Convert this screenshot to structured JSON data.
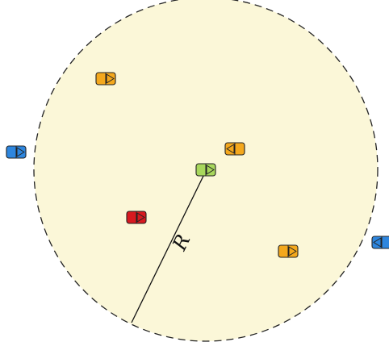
{
  "diagram": {
    "radius_label": "R",
    "colors": {
      "zone_fill": "#fbf7d8",
      "zone_border": "#222222",
      "center_vehicle": "#a8d75c",
      "orange_vehicle": "#f4a81d",
      "red_vehicle": "#d71920",
      "blue_vehicle": "#2e86de",
      "vehicle_outline": "#222222"
    },
    "vehicles": [
      {
        "id": "center",
        "color": "center_vehicle",
        "direction": "right",
        "inside_zone": true
      },
      {
        "id": "orange-1",
        "color": "orange_vehicle",
        "direction": "right",
        "inside_zone": true
      },
      {
        "id": "orange-2",
        "color": "orange_vehicle",
        "direction": "left",
        "inside_zone": true
      },
      {
        "id": "orange-3",
        "color": "orange_vehicle",
        "direction": "right",
        "inside_zone": true
      },
      {
        "id": "red-1",
        "color": "red_vehicle",
        "direction": "right",
        "inside_zone": true
      },
      {
        "id": "blue-1",
        "color": "blue_vehicle",
        "direction": "right",
        "inside_zone": false
      },
      {
        "id": "blue-2",
        "color": "blue_vehicle",
        "direction": "left",
        "inside_zone": false
      }
    ]
  }
}
